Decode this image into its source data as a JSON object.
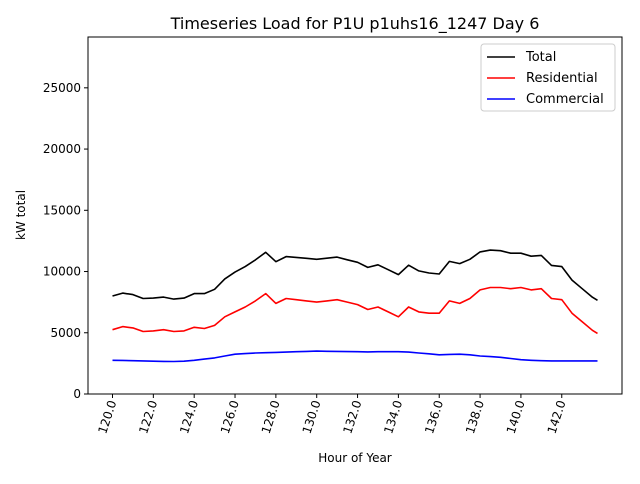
{
  "chart_data": {
    "type": "line",
    "title": "Timeseries Load for P1U p1uhs16_1247  Day 6",
    "xlabel": "Hour of Year",
    "ylabel": "kW total",
    "xlim": [
      118.8,
      144.95
    ],
    "ylim": [
      0,
      29150
    ],
    "xticks": [
      120,
      122,
      124,
      126,
      128,
      130,
      132,
      134,
      136,
      138,
      140,
      142
    ],
    "xtick_labels": [
      "120.0",
      "122.0",
      "124.0",
      "126.0",
      "128.0",
      "130.0",
      "132.0",
      "134.0",
      "136.0",
      "138.0",
      "140.0",
      "142.0"
    ],
    "yticks": [
      0,
      5000,
      10000,
      15000,
      20000,
      25000
    ],
    "ytick_labels": [
      "0",
      "5000",
      "10000",
      "15000",
      "20000",
      "25000"
    ],
    "grid": false,
    "legend_position": "top-right",
    "x": [
      120,
      120.5,
      121,
      121.5,
      122,
      122.5,
      123,
      123.5,
      124,
      124.5,
      125,
      125.5,
      126,
      126.5,
      127,
      127.5,
      128,
      128.5,
      129,
      129.5,
      130,
      130.5,
      131,
      131.5,
      132,
      132.5,
      133,
      133.5,
      134,
      134.5,
      135,
      135.5,
      136,
      136.5,
      137,
      137.5,
      138,
      138.5,
      139,
      139.5,
      140,
      140.5,
      141,
      141.5,
      142,
      142.5,
      143,
      143.5,
      143.75
    ],
    "series": [
      {
        "name": "Total",
        "color": "#000000",
        "values": [
          8000,
          8240,
          8120,
          7800,
          7830,
          7910,
          7750,
          7830,
          8200,
          8200,
          8550,
          9400,
          9950,
          10400,
          10950,
          11570,
          10800,
          11220,
          11150,
          11080,
          11000,
          11090,
          11180,
          10960,
          10750,
          10340,
          10550,
          10150,
          9750,
          10520,
          10050,
          9880,
          9800,
          10830,
          10650,
          11000,
          11600,
          11750,
          11700,
          11500,
          11500,
          11250,
          11320,
          10500,
          10400,
          9300,
          8600,
          7900,
          7650
        ]
      },
      {
        "name": "Residential",
        "color": "#ff0000",
        "values": [
          5250,
          5500,
          5400,
          5100,
          5150,
          5250,
          5100,
          5150,
          5450,
          5350,
          5600,
          6300,
          6700,
          7100,
          7600,
          8200,
          7400,
          7800,
          7700,
          7600,
          7500,
          7600,
          7700,
          7500,
          7300,
          6900,
          7100,
          6700,
          6300,
          7100,
          6700,
          6600,
          6600,
          7600,
          7400,
          7800,
          8500,
          8700,
          8700,
          8600,
          8700,
          8500,
          8600,
          7800,
          7700,
          6600,
          5900,
          5200,
          4950
        ]
      },
      {
        "name": "Commercial",
        "color": "#0000ff",
        "values": [
          2750,
          2740,
          2720,
          2700,
          2680,
          2660,
          2650,
          2680,
          2750,
          2850,
          2950,
          3100,
          3250,
          3300,
          3350,
          3370,
          3400,
          3420,
          3450,
          3480,
          3500,
          3490,
          3480,
          3460,
          3450,
          3440,
          3450,
          3450,
          3450,
          3420,
          3350,
          3280,
          3200,
          3230,
          3250,
          3200,
          3100,
          3050,
          3000,
          2900,
          2800,
          2750,
          2720,
          2700,
          2700,
          2700,
          2700,
          2700,
          2700
        ]
      }
    ]
  }
}
